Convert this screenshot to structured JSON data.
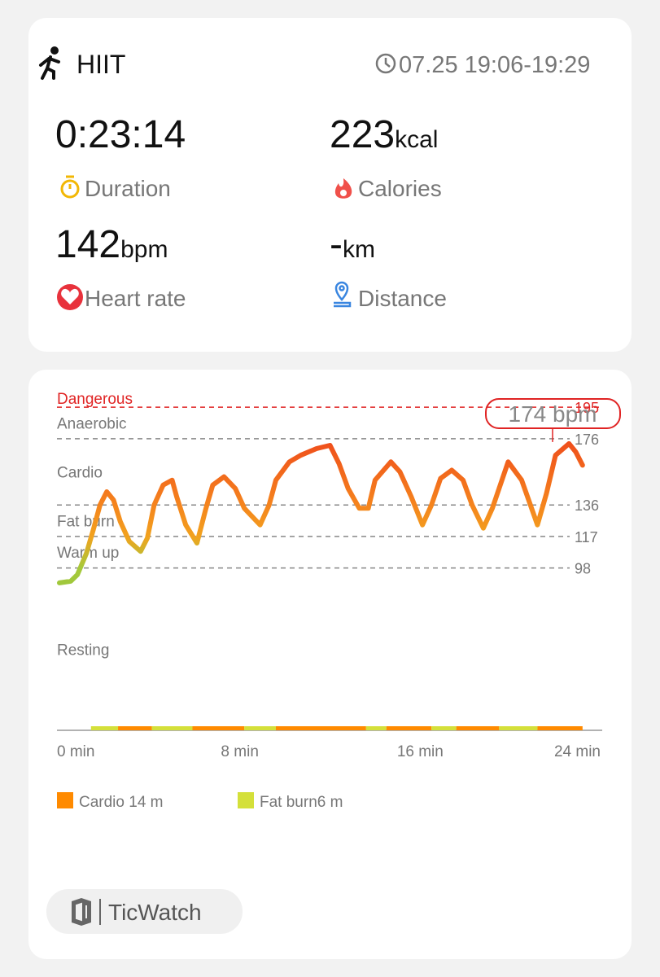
{
  "header": {
    "activity": "HIIT",
    "time": "07.25 19:06-19:29"
  },
  "stats": {
    "duration": {
      "value": "0:23:14",
      "label": "Duration"
    },
    "calories": {
      "value": "223",
      "unit": "kcal",
      "label": "Calories"
    },
    "heart_rate": {
      "value": "142",
      "unit": "bpm",
      "label": "Heart rate"
    },
    "distance": {
      "value": "-",
      "unit": "km",
      "label": "Distance"
    }
  },
  "chart_data": {
    "type": "line",
    "x": [
      0,
      0.5,
      0.8,
      1.2,
      1.5,
      1.8,
      2.1,
      2.4,
      2.7,
      3.1,
      3.6,
      3.9,
      4.2,
      4.6,
      5.0,
      5.2,
      5.6,
      6.1,
      6.5,
      6.8,
      7.3,
      7.8,
      8.2,
      8.9,
      9.3,
      9.6,
      10.2,
      10.7,
      11.4,
      12.0,
      12.4,
      12.8,
      13.3,
      13.7,
      14.0,
      14.7,
      15.1,
      15.6,
      16.1,
      16.5,
      16.9,
      17.4,
      17.9,
      18.3,
      18.8,
      19.2,
      19.9,
      20.5,
      21.2,
      21.6,
      22.0,
      22.6,
      22.9,
      23.2
    ],
    "series": [
      {
        "name": "Heart rate",
        "values": [
          89,
          90,
          94,
          107,
          121,
          136,
          144,
          139,
          126,
          114,
          108,
          116,
          136,
          148,
          151,
          141,
          124,
          113,
          134,
          148,
          153,
          146,
          134,
          124,
          136,
          151,
          162,
          166,
          170,
          172,
          161,
          146,
          134,
          134,
          151,
          162,
          156,
          141,
          124,
          136,
          152,
          157,
          151,
          136,
          122,
          134,
          162,
          151,
          124,
          143,
          166,
          173,
          168,
          160
        ]
      }
    ],
    "xlim": [
      0,
      24
    ],
    "xticks": [
      {
        "value": 0,
        "label": "0 min"
      },
      {
        "value": 8,
        "label": "8 min"
      },
      {
        "value": 16,
        "label": "16 min"
      },
      {
        "value": 24,
        "label": "24 min"
      }
    ],
    "ylim": [
      0,
      200
    ],
    "yticks": [
      98,
      117,
      136,
      176,
      195
    ],
    "zone_labels": [
      "Warm up",
      "Fat burn",
      "Cardio",
      "Anaerobic",
      "Dangerous"
    ],
    "zone_colors": [
      "#a6c93a",
      "#f2a21e",
      "#f5841d",
      "#ef4c1c",
      "#e02424"
    ],
    "resting_label": "Resting",
    "resting_color": "#6cbf4a",
    "annotation": {
      "text": "174 bpm",
      "value": 174
    },
    "legend": [
      {
        "label": "Cardio 14 m",
        "color": "#ff8a00"
      },
      {
        "label": "Fat burn6 m",
        "color": "#d4e03a"
      }
    ],
    "zone_strip": [
      {
        "x0": 1.4,
        "x1": 2.6,
        "zone": 1
      },
      {
        "x0": 2.6,
        "x1": 4.1,
        "zone": 0
      },
      {
        "x0": 4.1,
        "x1": 5.9,
        "zone": 1
      },
      {
        "x0": 5.9,
        "x1": 8.2,
        "zone": 0
      },
      {
        "x0": 8.2,
        "x1": 9.6,
        "zone": 1
      },
      {
        "x0": 9.6,
        "x1": 13.6,
        "zone": 0
      },
      {
        "x0": 13.6,
        "x1": 14.5,
        "zone": 1
      },
      {
        "x0": 14.5,
        "x1": 16.5,
        "zone": 0
      },
      {
        "x0": 16.5,
        "x1": 17.6,
        "zone": 1
      },
      {
        "x0": 17.6,
        "x1": 19.5,
        "zone": 0
      },
      {
        "x0": 19.5,
        "x1": 21.2,
        "zone": 1
      },
      {
        "x0": 21.2,
        "x1": 23.2,
        "zone": 0
      }
    ]
  },
  "footer": {
    "brand": "TicWatch"
  }
}
